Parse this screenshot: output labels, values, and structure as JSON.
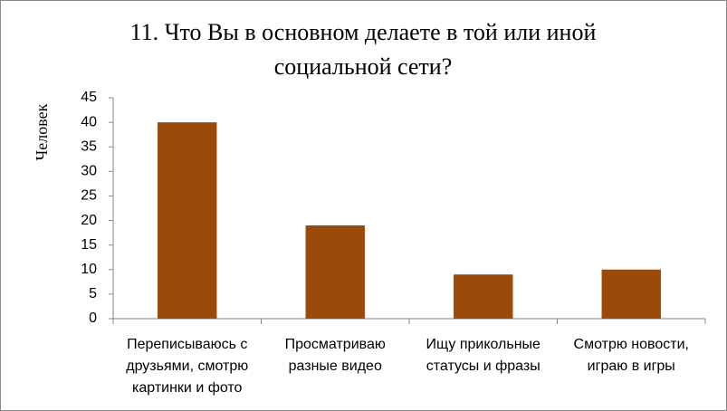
{
  "chart_data": {
    "type": "bar",
    "title": "11. Что Вы в основном делаете в той или иной социальной сети?",
    "y_label": "Человек",
    "categories": [
      "Переписываюсь с друзьями, смотрю картинки и фото",
      "Просматриваю разные видео",
      "Ищу прикольные статусы и фразы",
      "Смотрю новости, играю в игры"
    ],
    "values": [
      40,
      19,
      9,
      10
    ],
    "color": "#9c4a0a",
    "ylim": [
      0,
      45
    ],
    "yticks": [
      0,
      5,
      10,
      15,
      20,
      25,
      30,
      35,
      40,
      45
    ],
    "grid": false
  }
}
